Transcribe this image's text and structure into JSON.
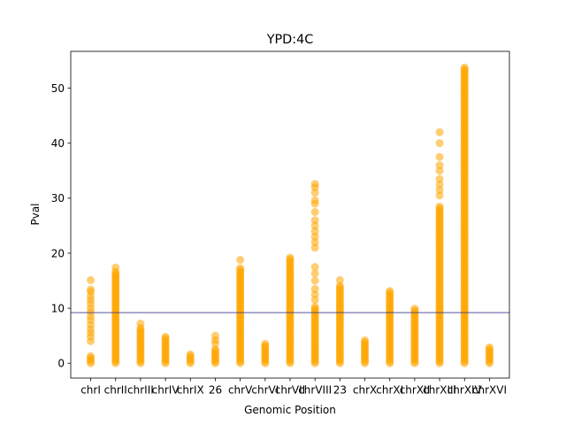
{
  "chart_data": {
    "type": "scatter",
    "title": "YPD:4C",
    "xlabel": "Genomic Position",
    "ylabel": "Pval",
    "ylim": [
      -2.7,
      56.7
    ],
    "yticks": [
      0,
      10,
      20,
      30,
      40,
      50
    ],
    "categories": [
      "chrI",
      "chrII",
      "chrIII",
      "chrIV",
      "chrIX",
      "26",
      "chrV",
      "chrVI",
      "chrVII",
      "chrVIII",
      "23",
      "chrX",
      "chrXI",
      "chrXII",
      "chrXIII",
      "chrXIV",
      "chrXVI"
    ],
    "series": [
      {
        "color": "#FFA500",
        "points": [
          {
            "chrom": 1,
            "min": 0,
            "max": 1.3,
            "outliers": [
              4.0,
              4.8,
              5.5,
              6.2,
              7.0,
              7.8,
              8.5,
              9.3,
              10.0,
              10.8,
              11.5,
              12.2,
              13.0,
              13.4,
              15.1
            ]
          },
          {
            "chrom": 2,
            "min": 0,
            "max": 16.8,
            "outliers": [
              17.4
            ]
          },
          {
            "chrom": 3,
            "min": 0,
            "max": 6.5,
            "outliers": [
              7.2
            ]
          },
          {
            "chrom": 4,
            "min": 0,
            "max": 5.0,
            "outliers": []
          },
          {
            "chrom": 5,
            "min": 0,
            "max": 1.7,
            "outliers": []
          },
          {
            "chrom": 6,
            "min": 0,
            "max": 2.8,
            "outliers": [
              3.6,
              4.2,
              5.0
            ]
          },
          {
            "chrom": 7,
            "min": 0,
            "max": 17.3,
            "outliers": [
              18.8
            ]
          },
          {
            "chrom": 8,
            "min": 0,
            "max": 3.7,
            "outliers": []
          },
          {
            "chrom": 9,
            "min": 0,
            "max": 19.5,
            "outliers": []
          },
          {
            "chrom": 10,
            "min": 0,
            "max": 10.5,
            "outliers": [
              11.5,
              12.5,
              13.5,
              15.0,
              16.3,
              17.5,
              21.0,
              22.0,
              23.0,
              24.0,
              25.0,
              26.0,
              27.5,
              29.0,
              29.6,
              31.0,
              32.0,
              32.6
            ]
          },
          {
            "chrom": 11,
            "min": 0,
            "max": 14.3,
            "outliers": [
              15.1
            ]
          },
          {
            "chrom": 12,
            "min": 0,
            "max": 4.3,
            "outliers": []
          },
          {
            "chrom": 13,
            "min": 0,
            "max": 13.3,
            "outliers": []
          },
          {
            "chrom": 14,
            "min": 0,
            "max": 10.2,
            "outliers": []
          },
          {
            "chrom": 15,
            "min": 0,
            "max": 28.5,
            "outliers": [
              30.5,
              31.5,
              32.5,
              33.5,
              35.0,
              36.0,
              37.5,
              40.0,
              42.0
            ]
          },
          {
            "chrom": 16,
            "min": 0,
            "max": 54.0,
            "outliers": []
          },
          {
            "chrom": 17,
            "min": 0,
            "max": 2.9,
            "outliers": []
          }
        ]
      }
    ],
    "threshold": 9.2,
    "threshold_color": "#3b3b8f",
    "grid": false,
    "legend": "none"
  }
}
